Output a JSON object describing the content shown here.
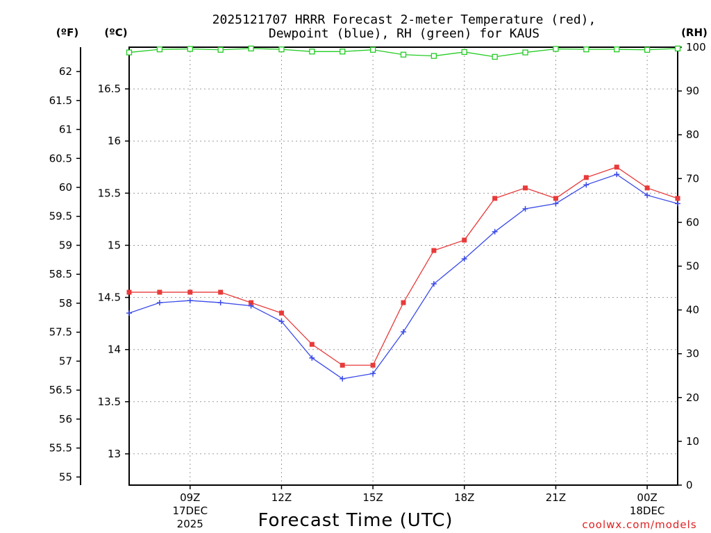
{
  "chart_data": {
    "type": "line",
    "title_line1": "2025121707 HRRR Forecast 2-meter Temperature (red),",
    "title_line2": "Dewpoint (blue), RH (green) for KAUS",
    "xlabel": "Forecast Time (UTC)",
    "credit": "coolwx.com/models",
    "units": {
      "fahrenheit": "(ºF)",
      "celsius": "(ºC)",
      "rh": "(RH)"
    },
    "x_hours": [
      7,
      8,
      9,
      10,
      11,
      12,
      13,
      14,
      15,
      16,
      17,
      18,
      19,
      20,
      21,
      22,
      23,
      24,
      25
    ],
    "xlim": [
      7,
      25
    ],
    "x_ticks": [
      {
        "hour": 9,
        "label": "09Z",
        "sub1": "17DEC",
        "sub2": "2025"
      },
      {
        "hour": 12,
        "label": "12Z",
        "sub1": "",
        "sub2": ""
      },
      {
        "hour": 15,
        "label": "15Z",
        "sub1": "",
        "sub2": ""
      },
      {
        "hour": 18,
        "label": "18Z",
        "sub1": "",
        "sub2": ""
      },
      {
        "hour": 21,
        "label": "21Z",
        "sub1": "",
        "sub2": ""
      },
      {
        "hour": 24,
        "label": "00Z",
        "sub1": "18DEC",
        "sub2": ""
      }
    ],
    "celsius_axis": {
      "ylim": [
        12.7,
        16.9
      ],
      "ticks": [
        "13",
        "13.5",
        "14",
        "14.5",
        "15",
        "15.5",
        "16",
        "16.5"
      ]
    },
    "fahrenheit_axis": {
      "ticks": [
        "55",
        "55.5",
        "56",
        "56.5",
        "57",
        "57.5",
        "58",
        "58.5",
        "59",
        "59.5",
        "60",
        "60.5",
        "61",
        "61.5",
        "62"
      ]
    },
    "rh_axis": {
      "ylim": [
        0,
        100
      ],
      "ticks": [
        "0",
        "10",
        "20",
        "30",
        "40",
        "50",
        "60",
        "70",
        "80",
        "90",
        "100"
      ]
    },
    "series": [
      {
        "name": "Temperature",
        "color": "#e83a3a",
        "marker": "square-filled",
        "values": [
          14.55,
          14.55,
          14.55,
          14.55,
          14.45,
          14.35,
          14.05,
          13.85,
          13.85,
          14.45,
          14.95,
          15.05,
          15.45,
          15.55,
          15.45,
          15.65,
          15.75,
          15.55,
          15.45
        ]
      },
      {
        "name": "Dewpoint",
        "color": "#3a4ae8",
        "marker": "plus",
        "values": [
          14.35,
          14.45,
          14.47,
          14.45,
          14.42,
          14.27,
          13.92,
          13.72,
          13.77,
          14.17,
          14.63,
          14.87,
          15.13,
          15.35,
          15.4,
          15.58,
          15.68,
          15.48,
          15.4
        ]
      },
      {
        "name": "RH",
        "color": "#22cc22",
        "marker": "square-open",
        "values": [
          98.8,
          99.5,
          99.6,
          99.4,
          99.7,
          99.5,
          99.0,
          99.0,
          99.4,
          98.3,
          98.0,
          98.9,
          97.8,
          98.8,
          99.6,
          99.5,
          99.5,
          99.4,
          99.7
        ]
      }
    ]
  }
}
